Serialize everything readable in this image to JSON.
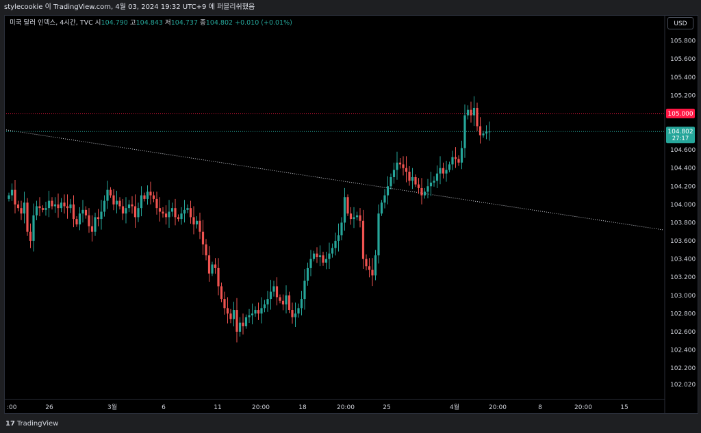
{
  "header": {
    "publish_line": "stylecookie 이 TradingView.com, 4월 03, 2024 19:32 UTC+9 에 퍼블리쉬했음"
  },
  "legend": {
    "symbol": "미국 달러 인덱스, 4시간, TVC",
    "open_label": "시",
    "open": "104.790",
    "high_label": "고",
    "high": "104.843",
    "low_label": "저",
    "low": "104.737",
    "close_label": "종",
    "close": "104.802",
    "change": "+0.010 (+0.01%)"
  },
  "currency_button": "USD",
  "footer": {
    "brand": "TradingView",
    "logo_mark": "17"
  },
  "colors": {
    "up": "#26a69a",
    "down": "#ef5350",
    "background": "#000000",
    "resistance": "#ff1744",
    "price_line": "#26a69a",
    "trendline": "#d1d4dc"
  },
  "chart_data": {
    "type": "candlestick",
    "y_axis": {
      "range": [
        101.9,
        106.0
      ],
      "ticks": [
        "105.800",
        "105.600",
        "105.400",
        "105.200",
        "104.600",
        "104.400",
        "104.200",
        "104.000",
        "103.800",
        "103.600",
        "103.400",
        "103.200",
        "103.000",
        "102.800",
        "102.600",
        "102.400",
        "102.200",
        "102.020"
      ]
    },
    "x_axis": {
      "tick_labels": [
        ":00",
        "26",
        "3월",
        "6",
        "11",
        "20:00",
        "18",
        "20:00",
        "25",
        "4월",
        "20:00",
        "8",
        "20:00",
        "15"
      ]
    },
    "horizontal_line": {
      "price": 105.0,
      "label": "105.000"
    },
    "current_price": {
      "price": 104.802,
      "label": "104.802",
      "countdown": "27:17"
    },
    "trendline": {
      "start": {
        "bar": 0,
        "price": 104.82
      },
      "end": {
        "bar": 145,
        "price": 103.72
      }
    },
    "closes": [
      104.1,
      104.16,
      104.0,
      103.96,
      103.9,
      104.02,
      103.7,
      103.6,
      103.88,
      103.98,
      103.96,
      103.94,
      103.96,
      104.04,
      103.98,
      104.0,
      103.96,
      104.02,
      103.98,
      103.96,
      104.0,
      103.84,
      103.78,
      103.9,
      103.94,
      103.88,
      103.76,
      103.7,
      103.86,
      103.84,
      103.92,
      104.04,
      104.16,
      104.1,
      104.0,
      104.04,
      103.98,
      103.9,
      103.96,
      104.0,
      103.98,
      103.86,
      103.96,
      104.1,
      104.06,
      104.14,
      104.1,
      104.06,
      103.96,
      103.92,
      103.9,
      103.86,
      103.92,
      103.96,
      103.86,
      103.84,
      103.9,
      103.94,
      103.96,
      103.86,
      103.78,
      103.82,
      103.7,
      103.56,
      103.44,
      103.24,
      103.34,
      103.3,
      103.1,
      102.96,
      102.86,
      102.8,
      102.74,
      102.84,
      102.6,
      102.7,
      102.66,
      102.76,
      102.78,
      102.8,
      102.84,
      102.8,
      102.86,
      102.9,
      102.96,
      103.04,
      103.1,
      102.98,
      102.94,
      102.9,
      103.0,
      102.84,
      102.76,
      102.8,
      102.86,
      102.96,
      103.16,
      103.3,
      103.4,
      103.46,
      103.42,
      103.44,
      103.36,
      103.4,
      103.46,
      103.52,
      103.6,
      103.66,
      103.8,
      104.08,
      103.9,
      103.84,
      103.86,
      103.88,
      103.82,
      103.4,
      103.32,
      103.28,
      103.22,
      103.44,
      103.9,
      104.02,
      104.1,
      104.2,
      104.3,
      104.38,
      104.46,
      104.44,
      104.4,
      104.36,
      104.26,
      104.3,
      104.22,
      104.18,
      104.1,
      104.14,
      104.2,
      104.24,
      104.26,
      104.34,
      104.4,
      104.34,
      104.38,
      104.44,
      104.52,
      104.5,
      104.46,
      104.62,
      104.98,
      105.04,
      104.98,
      105.06,
      104.86,
      104.76,
      104.78,
      104.8,
      104.802
    ]
  }
}
